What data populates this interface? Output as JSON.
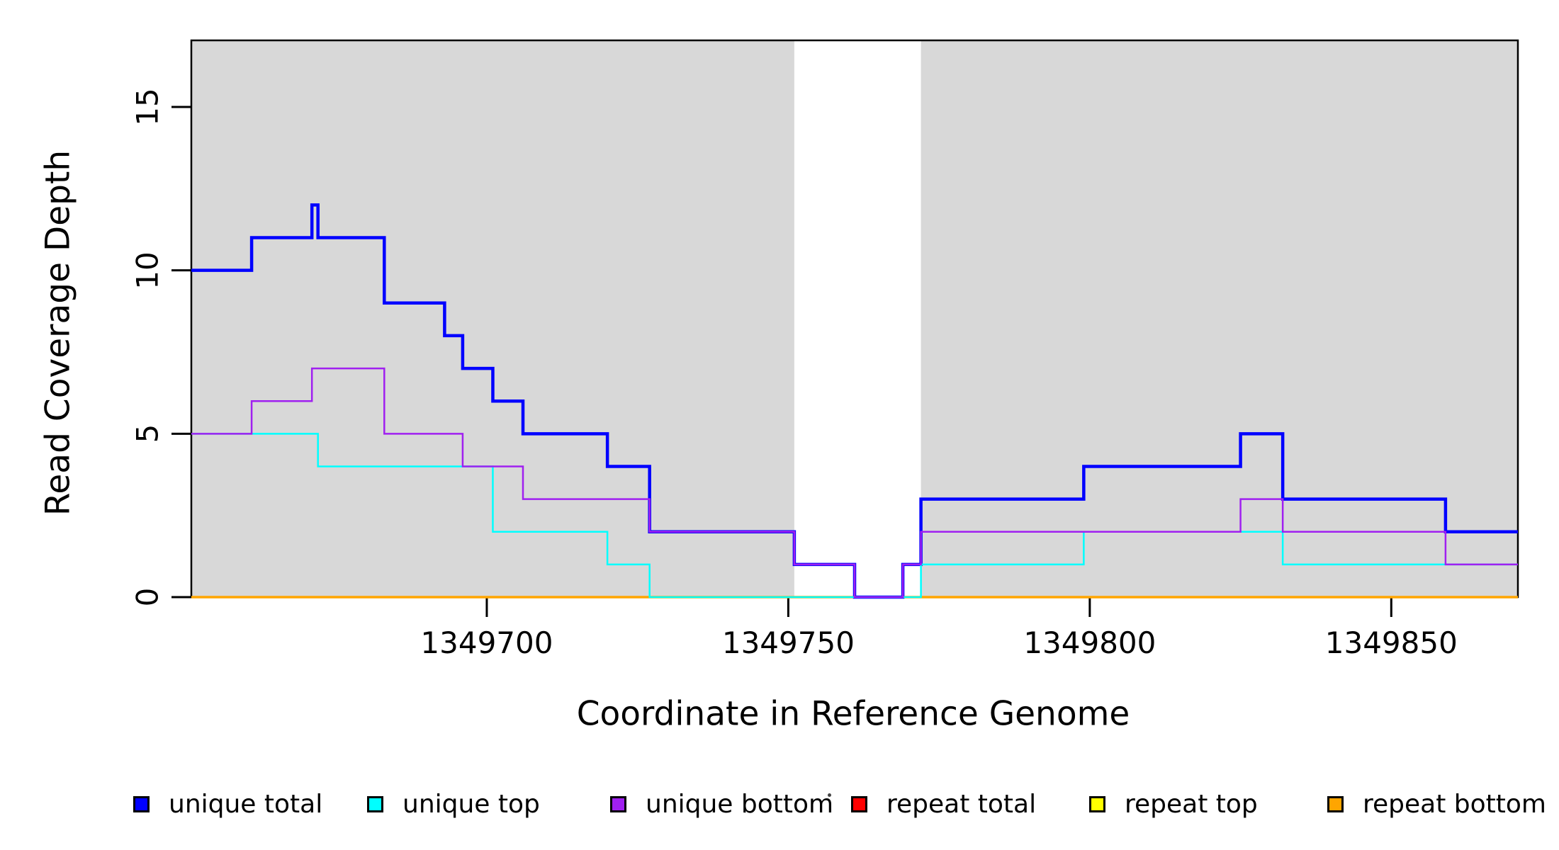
{
  "chart_data": {
    "type": "line",
    "subtype": "step",
    "title": "",
    "xlabel": "Coordinate in Reference Genome",
    "ylabel": "Read Coverage Depth",
    "xlim": [
      1349651,
      1349871
    ],
    "ylim": [
      0,
      17
    ],
    "grid": false,
    "x_ticks": {
      "values": [
        1349700,
        1349750,
        1349800,
        1349850
      ],
      "labels": [
        "1349700",
        "1349750",
        "1349800",
        "1349850"
      ]
    },
    "y_ticks": {
      "values": [
        0,
        5,
        10,
        15
      ],
      "labels": [
        "0",
        "5",
        "10",
        "15"
      ]
    },
    "background_bands": [
      {
        "name": "shaded-region-left",
        "x0": 1349651,
        "x1": 1349751,
        "color": "#D8D8D8"
      },
      {
        "name": "shaded-region-right",
        "x0": 1349772,
        "x1": 1349871,
        "color": "#D8D8D8"
      }
    ],
    "white_gap": {
      "x0": 1349751,
      "x1": 1349772
    },
    "series": [
      {
        "name": "repeat total",
        "color": "#FF0000",
        "width": 2,
        "z": 1,
        "steps": [
          [
            1349651,
            0
          ]
        ]
      },
      {
        "name": "repeat top",
        "color": "#FFFF00",
        "width": 2,
        "z": 2,
        "steps": [
          [
            1349651,
            0
          ]
        ]
      },
      {
        "name": "repeat bottom",
        "color": "#FFA500",
        "width": 3.5,
        "z": 3,
        "steps": [
          [
            1349651,
            0
          ]
        ]
      },
      {
        "name": "unique total",
        "color": "#0000FF",
        "width": 4.5,
        "z": 4,
        "steps": [
          [
            1349651,
            10
          ],
          [
            1349661,
            11
          ],
          [
            1349671,
            12
          ],
          [
            1349672,
            11
          ],
          [
            1349683,
            9
          ],
          [
            1349693,
            8
          ],
          [
            1349696,
            7
          ],
          [
            1349701,
            6
          ],
          [
            1349706,
            5
          ],
          [
            1349720,
            4
          ],
          [
            1349727,
            2
          ],
          [
            1349751,
            1
          ],
          [
            1349761,
            0
          ],
          [
            1349769,
            1
          ],
          [
            1349772,
            3
          ],
          [
            1349799,
            4
          ],
          [
            1349825,
            5
          ],
          [
            1349832,
            3
          ],
          [
            1349859,
            2
          ]
        ]
      },
      {
        "name": "unique top",
        "color": "#00FFFF",
        "width": 2.5,
        "z": 5,
        "steps": [
          [
            1349651,
            5
          ],
          [
            1349672,
            4
          ],
          [
            1349701,
            2
          ],
          [
            1349720,
            1
          ],
          [
            1349727,
            0
          ],
          [
            1349772,
            1
          ],
          [
            1349799,
            2
          ],
          [
            1349832,
            1
          ]
        ]
      },
      {
        "name": "unique bottom",
        "color": "#A020F0",
        "width": 2.5,
        "z": 6,
        "steps": [
          [
            1349651,
            5
          ],
          [
            1349661,
            6
          ],
          [
            1349671,
            7
          ],
          [
            1349683,
            5
          ],
          [
            1349696,
            4
          ],
          [
            1349706,
            3
          ],
          [
            1349727,
            2
          ],
          [
            1349751,
            1
          ],
          [
            1349761,
            0
          ],
          [
            1349769,
            1
          ],
          [
            1349772,
            2
          ],
          [
            1349825,
            3
          ],
          [
            1349832,
            2
          ],
          [
            1349859,
            1
          ]
        ]
      }
    ],
    "legend_position": "bottom"
  },
  "legend": {
    "items": [
      {
        "label": "unique total",
        "color": "#0000FF"
      },
      {
        "label": "unique top",
        "color": "#00FFFF"
      },
      {
        "label": "unique bottom",
        "color": "#A020F0"
      },
      {
        "label": "repeat total",
        "color": "#FF0000"
      },
      {
        "label": "repeat top",
        "color": "#FFFF00"
      },
      {
        "label": "repeat bottom",
        "color": "#FFA500"
      }
    ]
  }
}
